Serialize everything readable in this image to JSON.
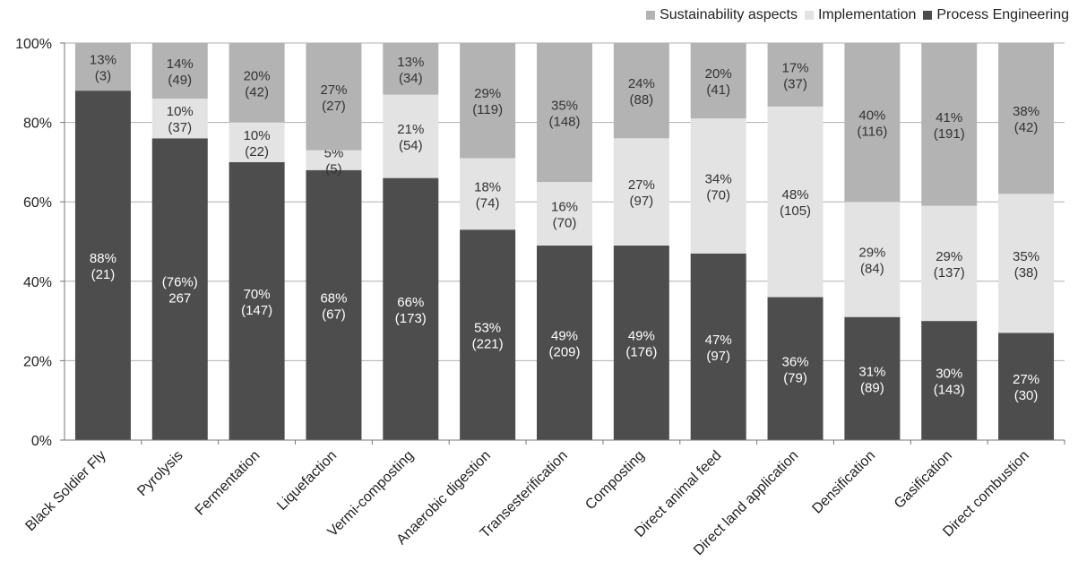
{
  "chart_data": {
    "type": "bar",
    "stacked": true,
    "categories": [
      "Black Soldier Fly",
      "Pyrolysis",
      "Fermentation",
      "Liquefaction",
      "Vermi-composting",
      "Anaerobic digestion",
      "Transesterification",
      "Composting",
      "Direct animal feed",
      "Direct land application",
      "Densification",
      "Gasification",
      "Direct combustion"
    ],
    "series": [
      {
        "name": "Process Engineering",
        "color": "#4d4d4d",
        "values": [
          88,
          76,
          70,
          68,
          66,
          53,
          49,
          49,
          47,
          36,
          31,
          30,
          27
        ],
        "labels": [
          [
            "88%",
            "(21)"
          ],
          [
            "(76%)",
            "267"
          ],
          [
            "70%",
            "(147)"
          ],
          [
            "68%",
            "(67)"
          ],
          [
            "66%",
            "(173)"
          ],
          [
            "53%",
            "(221)"
          ],
          [
            "49%",
            "(209)"
          ],
          [
            "49%",
            "(176)"
          ],
          [
            "47%",
            "(97)"
          ],
          [
            "36%",
            "(79)"
          ],
          [
            "31%",
            "(89)"
          ],
          [
            "30%",
            "(143)"
          ],
          [
            "27%",
            "(30)"
          ]
        ]
      },
      {
        "name": "Implementation",
        "color": "#e3e3e3",
        "values": [
          0,
          10,
          10,
          5,
          21,
          18,
          16,
          27,
          34,
          48,
          29,
          29,
          35
        ],
        "labels": [
          null,
          [
            "10%",
            "(37)"
          ],
          [
            "10%",
            "(22)"
          ],
          [
            "5%",
            "(5)"
          ],
          [
            "21%",
            "(54)"
          ],
          [
            "18%",
            "(74)"
          ],
          [
            "16%",
            "(70)"
          ],
          [
            "27%",
            "(97)"
          ],
          [
            "34%",
            "(70)"
          ],
          [
            "48%",
            "(105)"
          ],
          [
            "29%",
            "(84)"
          ],
          [
            "29%",
            "(137)"
          ],
          [
            "35%",
            "(38)"
          ]
        ]
      },
      {
        "name": "Sustainability aspects",
        "color": "#b3b3b3",
        "values": [
          13,
          14,
          20,
          27,
          13,
          29,
          35,
          24,
          20,
          17,
          40,
          41,
          38
        ],
        "labels": [
          [
            "13%",
            "(3)"
          ],
          [
            "14%",
            "(49)"
          ],
          [
            "20%",
            "(42)"
          ],
          [
            "27%",
            "(27)"
          ],
          [
            "13%",
            "(34)"
          ],
          [
            "29%",
            "(119)"
          ],
          [
            "35%",
            "(148)"
          ],
          [
            "24%",
            "(88)"
          ],
          [
            "20%",
            "(41)"
          ],
          [
            "17%",
            "(37)"
          ],
          [
            "40%",
            "(116)"
          ],
          [
            "41%",
            "(191)"
          ],
          [
            "38%",
            "(42)"
          ]
        ]
      }
    ],
    "legend_order": [
      "Sustainability aspects",
      "Implementation",
      "Process Engineering"
    ],
    "legend_position": "top-right",
    "ylim": [
      0,
      100
    ],
    "yticks": [
      "0%",
      "20%",
      "40%",
      "60%",
      "80%",
      "100%"
    ],
    "grid": true,
    "title": "",
    "xlabel": "",
    "ylabel": ""
  }
}
